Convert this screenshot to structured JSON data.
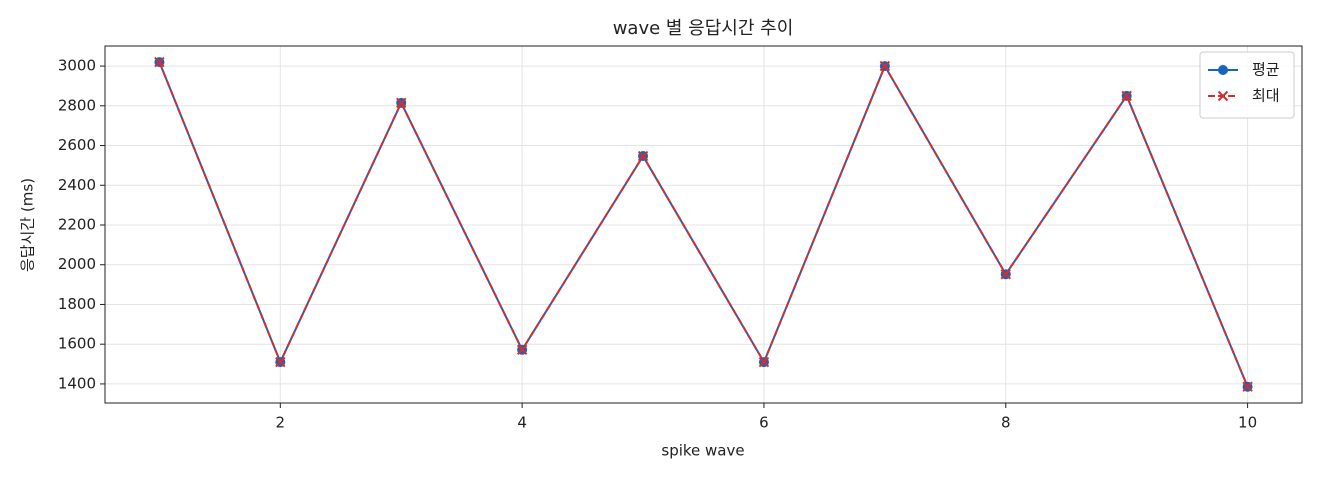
{
  "chart_data": {
    "type": "line",
    "title": "wave 별 응답시간 추이",
    "x_label": "spike wave",
    "y_label": "응답시간 (ms)",
    "x": [
      1,
      2,
      3,
      4,
      5,
      6,
      7,
      8,
      9,
      10
    ],
    "series": [
      {
        "name": "평균",
        "color": "#1565c0",
        "marker": "o",
        "linestyle": "solid",
        "values": [
          3020,
          1510,
          2815,
          1572,
          2547,
          1510,
          3000,
          1952,
          2850,
          1386
        ]
      },
      {
        "name": "최대",
        "color": "#d32f2f",
        "marker": "x",
        "linestyle": "dashed",
        "values": [
          3020,
          1510,
          2815,
          1572,
          2547,
          1510,
          3000,
          1952,
          2850,
          1386
        ]
      }
    ],
    "xlim": [
      0.55,
      10.45
    ],
    "ylim": [
      1304,
      3101
    ],
    "xticks": [
      2,
      4,
      6,
      8,
      10
    ],
    "yticks": [
      1400,
      1600,
      1800,
      2000,
      2200,
      2400,
      2600,
      2800,
      3000
    ],
    "grid": true,
    "legend": "upper right"
  }
}
